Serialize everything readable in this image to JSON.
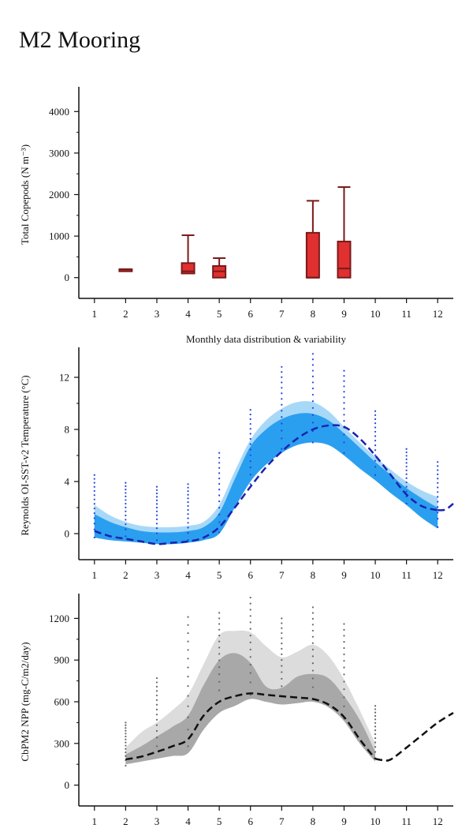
{
  "page": {
    "title": "M2 Mooring"
  },
  "chart_data": [
    {
      "type": "box",
      "title": "",
      "xlabel": "Monthly data distribution & variability",
      "ylabel": "Total Copepods (N m⁻³)",
      "xlim": [
        0.5,
        12.5
      ],
      "ylim": [
        -500,
        4500
      ],
      "xticks": [
        1,
        2,
        3,
        4,
        5,
        6,
        7,
        8,
        9,
        10,
        11,
        12
      ],
      "yticks": [
        0,
        1000,
        2000,
        3000,
        4000
      ],
      "yticklabels": [
        "0",
        "1000",
        "2000",
        "3000",
        "4000"
      ],
      "color": "#e03030",
      "edge_color": "#7a1a1a",
      "boxes": [
        {
          "month": 2,
          "min": 200,
          "q1": 200,
          "median": 200,
          "q3": 200,
          "max": 200
        },
        {
          "month": 4,
          "min": 100,
          "q1": 100,
          "median": 150,
          "q3": 350,
          "max": 1020
        },
        {
          "month": 5,
          "min": 0,
          "q1": 0,
          "median": 150,
          "q3": 280,
          "max": 470
        },
        {
          "month": 8,
          "min": 0,
          "q1": 0,
          "median": 0,
          "q3": 1080,
          "max": 1850
        },
        {
          "month": 9,
          "min": 0,
          "q1": 0,
          "median": 220,
          "q3": 870,
          "max": 2180
        }
      ]
    },
    {
      "type": "area",
      "title": "",
      "xlabel": "",
      "ylabel": "Reynolds OI-SST-v2 Temperature (°C)",
      "xlim": [
        0.5,
        12.5
      ],
      "ylim": [
        -2,
        14
      ],
      "xticks": [
        1,
        2,
        3,
        4,
        5,
        6,
        7,
        8,
        9,
        10,
        11,
        12
      ],
      "yticks": [
        0,
        4,
        8,
        12
      ],
      "yticklabels": [
        "0",
        "4",
        "8",
        "12"
      ],
      "outer_color": "#a8d8f8",
      "inner_color": "#2a9ff0",
      "line_color": "#1a22b0",
      "scatter_color": "#2244dd",
      "x": [
        1,
        1.5,
        2,
        2.5,
        3,
        3.5,
        4,
        4.5,
        5,
        5.5,
        6,
        6.5,
        7,
        7.5,
        8,
        8.5,
        9,
        9.5,
        10,
        10.5,
        11,
        11.5,
        12
      ],
      "outer_upper": [
        2.2,
        1.4,
        0.9,
        0.6,
        0.5,
        0.5,
        0.6,
        0.9,
        2.2,
        4.8,
        7.2,
        8.7,
        9.6,
        10.1,
        10.1,
        9.4,
        8.2,
        7.0,
        5.9,
        4.9,
        4.0,
        3.3,
        2.8
      ],
      "inner_upper": [
        1.5,
        0.9,
        0.5,
        0.2,
        0.1,
        0.1,
        0.2,
        0.5,
        1.6,
        4.2,
        6.7,
        8.0,
        8.8,
        9.2,
        9.2,
        8.7,
        7.7,
        6.6,
        5.5,
        4.5,
        3.5,
        2.7,
        2.0
      ],
      "lower": [
        -0.3,
        -0.5,
        -0.6,
        -0.7,
        -0.8,
        -0.8,
        -0.7,
        -0.5,
        0.0,
        2.0,
        4.0,
        5.3,
        6.2,
        6.8,
        7.0,
        6.8,
        6.0,
        5.0,
        4.1,
        3.1,
        2.2,
        1.2,
        0.4
      ],
      "line": [
        0.2,
        -0.2,
        -0.4,
        -0.6,
        -0.8,
        -0.7,
        -0.6,
        -0.3,
        0.5,
        2.0,
        3.6,
        5.1,
        6.3,
        7.3,
        8.0,
        8.3,
        8.2,
        7.3,
        6.0,
        4.5,
        3.0,
        2.1,
        1.8
      ],
      "line_extension": {
        "x": [
          12,
          12.25,
          12.5
        ],
        "y": [
          1.8,
          1.85,
          2.3
        ]
      },
      "scatter_months": [
        1,
        2,
        3,
        4,
        5,
        6,
        7,
        8,
        9,
        10,
        11,
        12
      ],
      "scatter_min": [
        -0.3,
        -0.2,
        -0.5,
        -0.5,
        0.1,
        3.8,
        6.5,
        7.0,
        6.2,
        4.5,
        2.3,
        0.5
      ],
      "scatter_max": [
        4.5,
        3.9,
        3.6,
        3.8,
        6.2,
        9.5,
        12.8,
        13.8,
        12.5,
        9.4,
        6.5,
        5.5
      ]
    },
    {
      "type": "area",
      "title": "",
      "xlabel": "",
      "ylabel": "CbPM2 NPP (mg-C/m2/day)",
      "xlim": [
        0.5,
        12.5
      ],
      "ylim": [
        -150,
        1350
      ],
      "xticks": [
        1,
        2,
        3,
        4,
        5,
        6,
        7,
        8,
        9,
        10,
        11,
        12
      ],
      "yticks": [
        0,
        300,
        600,
        900,
        1200
      ],
      "yticklabels": [
        "0",
        "300",
        "600",
        "900",
        "1200"
      ],
      "outer_color": "#dcdcdc",
      "inner_color": "#a8a8a8",
      "line_color": "#111111",
      "scatter_color": "#666666",
      "x": [
        2,
        2.5,
        3,
        3.5,
        4,
        4.5,
        5,
        5.5,
        6,
        6.5,
        7,
        7.5,
        8,
        8.5,
        9,
        9.5,
        10
      ],
      "outer_upper": [
        270,
        380,
        450,
        540,
        650,
        870,
        1080,
        1110,
        1100,
        1000,
        920,
        960,
        1010,
        930,
        760,
        540,
        300
      ],
      "inner_upper": [
        220,
        280,
        350,
        420,
        500,
        720,
        900,
        950,
        880,
        710,
        700,
        780,
        800,
        770,
        640,
        470,
        240
      ],
      "lower": [
        150,
        170,
        190,
        210,
        230,
        400,
        520,
        570,
        620,
        600,
        580,
        590,
        600,
        560,
        460,
        300,
        170
      ],
      "line": [
        185,
        205,
        240,
        280,
        330,
        500,
        600,
        640,
        660,
        650,
        640,
        630,
        620,
        580,
        490,
        330,
        190
      ],
      "line_extension": {
        "x": [
          10,
          10.25,
          10.5,
          11,
          11.5,
          12,
          12.5
        ],
        "y": [
          190,
          180,
          185,
          270,
          360,
          450,
          520
        ]
      },
      "scatter_months": [
        2,
        3,
        4,
        5,
        6,
        7,
        8,
        9,
        10
      ],
      "scatter_min": [
        140,
        280,
        280,
        600,
        650,
        640,
        620,
        480,
        190
      ],
      "scatter_max": [
        450,
        770,
        1210,
        1240,
        1350,
        1200,
        1280,
        1160,
        570
      ]
    }
  ]
}
